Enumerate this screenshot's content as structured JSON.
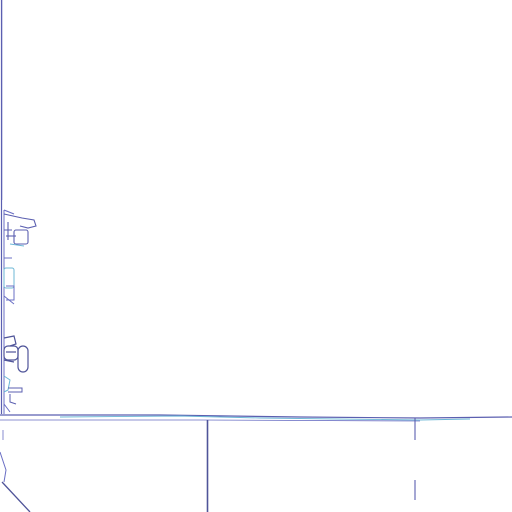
{
  "colors": {
    "background": "#ffffff",
    "line_primary": "#5b5fb0",
    "line_secondary": "#6a6fc4",
    "line_accent": "#6cb7d6",
    "line_light": "#c9cbe6"
  },
  "icons": [
    "faucet-icon",
    "outlet-icon",
    "toilet-icon",
    "pipe-fitting-icon"
  ]
}
